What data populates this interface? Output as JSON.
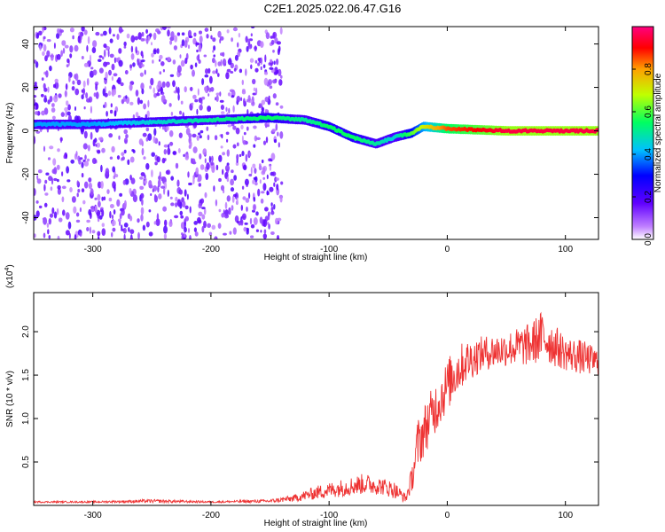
{
  "title": "C2E1.2025.022.06.47.G16",
  "chart_data": [
    {
      "type": "heatmap",
      "xlabel": "Height of straight line (km)",
      "ylabel": "Frequency (Hz)",
      "xlim": [
        -350,
        128
      ],
      "ylim": [
        -50,
        48
      ],
      "x_ticks": [
        -300,
        -200,
        -100,
        0,
        100
      ],
      "y_ticks": [
        -40,
        -20,
        0,
        20,
        40
      ],
      "colorbar": {
        "label": "Normalized spectral amplitude",
        "range": [
          0.0,
          1.0
        ],
        "ticks": [
          0.0,
          0.2,
          0.4,
          0.6,
          0.8
        ],
        "colors": [
          "#ffffff",
          "#c080ff",
          "#6000ff",
          "#0000ff",
          "#00c0ff",
          "#00ff60",
          "#c0ff00",
          "#ffa000",
          "#ff0000",
          "#ff0080"
        ]
      },
      "ridge": {
        "x": [
          -350,
          -300,
          -250,
          -200,
          -150,
          -120,
          -100,
          -80,
          -60,
          -45,
          -30,
          -20,
          0,
          50,
          100,
          128
        ],
        "y": [
          3,
          3,
          4,
          5,
          6,
          5,
          2,
          -3,
          -6,
          -3,
          -1,
          2,
          1,
          0,
          0,
          0
        ],
        "amplitude": [
          0.4,
          0.4,
          0.45,
          0.5,
          0.55,
          0.5,
          0.55,
          0.55,
          0.5,
          0.45,
          0.6,
          0.7,
          0.85,
          0.95,
          0.95,
          0.95
        ]
      },
      "scatter_region": {
        "x": [
          -350,
          -140
        ],
        "y": [
          -50,
          48
        ],
        "amplitude": [
          0.05,
          0.2
        ]
      }
    },
    {
      "type": "line",
      "xlabel": "Height of straight line (km)",
      "ylabel": "SNR (10 * v/v)",
      "y_multiplier_label": "(x10",
      "y_multiplier_exp": "4",
      "xlim": [
        -350,
        128
      ],
      "ylim": [
        0,
        2.45
      ],
      "x_ticks": [
        -300,
        -200,
        -100,
        0,
        100
      ],
      "y_ticks": [
        0.5,
        1.0,
        1.5,
        2.0
      ],
      "color": "#ee3333",
      "series": [
        {
          "x": [
            -350,
            -300,
            -250,
            -200,
            -150,
            -130,
            -110,
            -90,
            -70,
            -55,
            -45,
            -35,
            -30,
            -25,
            -15,
            -5,
            5,
            15,
            30,
            50,
            70,
            80,
            100,
            115,
            128
          ],
          "y": [
            0.04,
            0.04,
            0.05,
            0.04,
            0.05,
            0.08,
            0.15,
            0.2,
            0.25,
            0.22,
            0.18,
            0.08,
            0.3,
            0.7,
            1.0,
            1.25,
            1.5,
            1.65,
            1.75,
            1.8,
            1.85,
            1.95,
            1.75,
            1.7,
            1.65
          ],
          "noise": [
            0.01,
            0.01,
            0.02,
            0.01,
            0.02,
            0.04,
            0.08,
            0.1,
            0.12,
            0.1,
            0.1,
            0.05,
            0.15,
            0.3,
            0.3,
            0.3,
            0.3,
            0.25,
            0.2,
            0.2,
            0.25,
            0.3,
            0.2,
            0.2,
            0.15
          ]
        }
      ]
    }
  ]
}
